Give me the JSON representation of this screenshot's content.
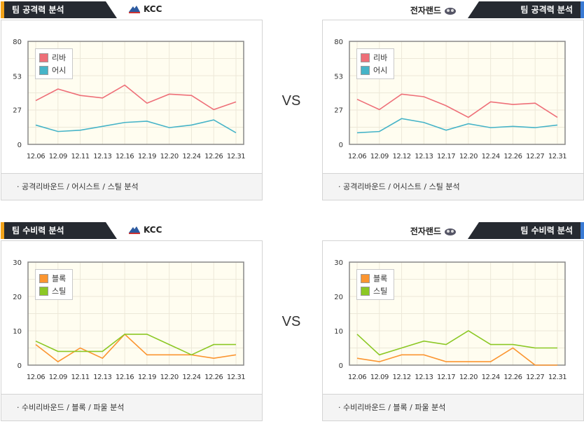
{
  "vs_label": "VS",
  "colors": {
    "rebound": "#ee6f78",
    "assist": "#46b4c8",
    "block": "#fb9530",
    "steal": "#8cc825"
  },
  "panels": [
    {
      "id": "off-left",
      "side": "left",
      "title": "팀 공격력 분석",
      "team": "KCC",
      "footer": "· 공격리바운드 / 어시스트 / 스틸 분석",
      "chart_data": {
        "type": "line",
        "categories": [
          "12.06",
          "12.09",
          "12.11",
          "12.13",
          "12.16",
          "12.19",
          "12.20",
          "12.24",
          "12.26",
          "12.31"
        ],
        "ylim": [
          0,
          80
        ],
        "yticks": [
          0,
          27,
          53,
          80
        ],
        "series": [
          {
            "name": "리바",
            "color_key": "rebound",
            "values": [
              34,
              43,
              38,
              36,
              46,
              32,
              39,
              38,
              27,
              33
            ]
          },
          {
            "name": "어시",
            "color_key": "assist",
            "values": [
              15,
              10,
              11,
              14,
              17,
              18,
              13,
              15,
              19,
              9
            ]
          }
        ]
      }
    },
    {
      "id": "off-right",
      "side": "right",
      "title": "팀 공격력 분석",
      "team": "전자랜드",
      "footer": "· 공격리바운드 / 어시스트 / 스틸 분석",
      "chart_data": {
        "type": "line",
        "categories": [
          "12.06",
          "12.09",
          "12.12",
          "12.13",
          "12.17",
          "12.20",
          "12.24",
          "12.26",
          "12.27",
          "12.31"
        ],
        "ylim": [
          0,
          80
        ],
        "yticks": [
          0,
          27,
          53,
          80
        ],
        "series": [
          {
            "name": "리바",
            "color_key": "rebound",
            "values": [
              35,
              27,
              39,
              37,
              30,
              21,
              33,
              31,
              32,
              21
            ]
          },
          {
            "name": "어시",
            "color_key": "assist",
            "values": [
              9,
              10,
              20,
              17,
              11,
              16,
              13,
              14,
              13,
              15
            ]
          }
        ]
      }
    },
    {
      "id": "def-left",
      "side": "left",
      "title": "팀 수비력 분석",
      "team": "KCC",
      "footer": "· 수비리바운드 / 블록 / 파울 분석",
      "chart_data": {
        "type": "line",
        "categories": [
          "12.06",
          "12.09",
          "12.11",
          "12.13",
          "12.16",
          "12.19",
          "12.20",
          "12.24",
          "12.26",
          "12.31"
        ],
        "ylim": [
          0,
          30
        ],
        "yticks": [
          0,
          10,
          20,
          30
        ],
        "series": [
          {
            "name": "블록",
            "color_key": "block",
            "values": [
              6,
              1,
              5,
              2,
              9,
              3,
              3,
              3,
              2,
              3
            ]
          },
          {
            "name": "스틸",
            "color_key": "steal",
            "values": [
              7,
              4,
              4,
              4,
              9,
              9,
              6,
              3,
              6,
              6
            ]
          }
        ]
      }
    },
    {
      "id": "def-right",
      "side": "right",
      "title": "팀 수비력 분석",
      "team": "전자랜드",
      "footer": "· 수비리바운드 / 블록 / 파울 분석",
      "chart_data": {
        "type": "line",
        "categories": [
          "12.06",
          "12.09",
          "12.12",
          "12.13",
          "12.17",
          "12.20",
          "12.24",
          "12.26",
          "12.27",
          "12.31"
        ],
        "ylim": [
          0,
          30
        ],
        "yticks": [
          0,
          10,
          20,
          30
        ],
        "series": [
          {
            "name": "블록",
            "color_key": "block",
            "values": [
              2,
              1,
              3,
              3,
              1,
              1,
              1,
              5,
              0,
              0
            ]
          },
          {
            "name": "스틸",
            "color_key": "steal",
            "values": [
              9,
              3,
              5,
              7,
              6,
              10,
              6,
              6,
              5,
              5
            ]
          }
        ]
      }
    }
  ]
}
